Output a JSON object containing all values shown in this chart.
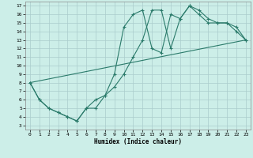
{
  "title": "",
  "xlabel": "Humidex (Indice chaleur)",
  "background_color": "#cceee8",
  "grid_color": "#aacccc",
  "line_color": "#2a7a6a",
  "xlim": [
    -0.5,
    23.5
  ],
  "ylim": [
    2.5,
    17.5
  ],
  "xticks": [
    0,
    1,
    2,
    3,
    4,
    5,
    6,
    7,
    8,
    9,
    10,
    11,
    12,
    13,
    14,
    15,
    16,
    17,
    18,
    19,
    20,
    21,
    22,
    23
  ],
  "yticks": [
    3,
    4,
    5,
    6,
    7,
    8,
    9,
    10,
    11,
    12,
    13,
    14,
    15,
    16,
    17
  ],
  "line1_x": [
    0,
    1,
    2,
    3,
    4,
    5,
    6,
    7,
    8,
    9,
    10,
    11,
    12,
    13,
    14,
    15,
    16,
    17,
    18,
    19,
    20,
    21,
    22,
    23
  ],
  "line1_y": [
    8,
    6,
    5,
    4.5,
    4,
    3.5,
    5,
    5,
    6.5,
    7.5,
    9,
    11,
    13,
    16.5,
    16.5,
    12,
    15.5,
    17,
    16,
    15,
    15,
    15,
    14,
    13
  ],
  "line2_x": [
    0,
    1,
    2,
    3,
    4,
    5,
    6,
    7,
    8,
    9,
    10,
    11,
    12,
    13,
    14,
    15,
    16,
    17,
    18,
    19,
    20,
    21,
    22,
    23
  ],
  "line2_y": [
    8,
    6,
    5,
    4.5,
    4,
    3.5,
    5,
    6,
    6.5,
    9,
    14.5,
    16,
    16.5,
    12,
    11.5,
    16,
    15.5,
    17,
    16.5,
    15.5,
    15,
    15,
    14.5,
    13
  ],
  "line3_x": [
    0,
    23
  ],
  "line3_y": [
    8,
    13
  ]
}
